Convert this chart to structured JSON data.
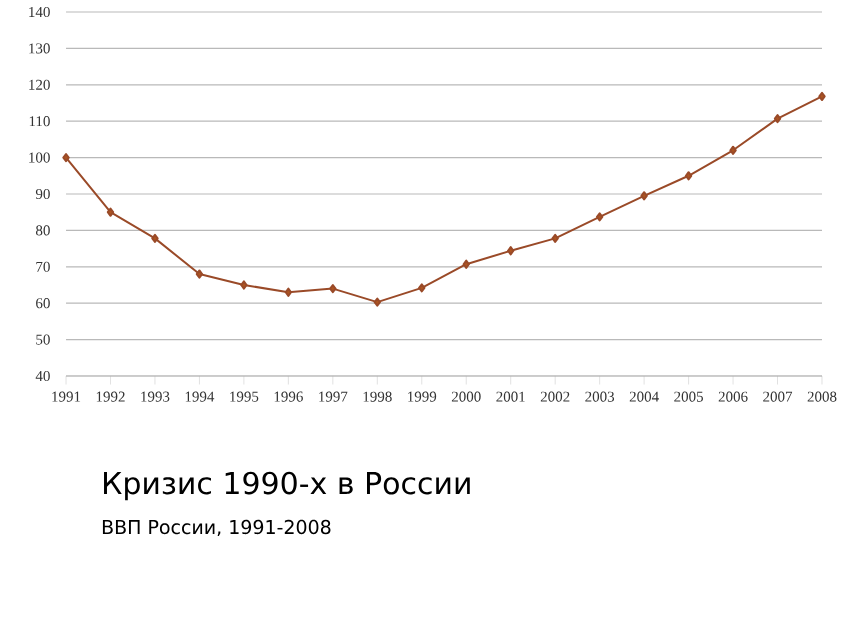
{
  "chart_data": {
    "type": "line",
    "title": "Кризис 1990-х в России",
    "subtitle": "ВВП России, 1991-2008",
    "categories": [
      "1991",
      "1992",
      "1993",
      "1994",
      "1995",
      "1996",
      "1997",
      "1998",
      "1999",
      "2000",
      "2001",
      "2002",
      "2003",
      "2004",
      "2005",
      "2006",
      "2007",
      "2008"
    ],
    "series": [
      {
        "color": "#9a4a28",
        "values": [
          100,
          85,
          77.8,
          68,
          65,
          63,
          64,
          60.3,
          64.2,
          70.7,
          74.4,
          77.8,
          83.7,
          89.5,
          95,
          102,
          110.7,
          116.8
        ]
      }
    ],
    "ylim": [
      40,
      140
    ],
    "yticks": [
      40,
      50,
      60,
      70,
      80,
      90,
      100,
      110,
      120,
      130,
      140
    ],
    "grid": "y",
    "marker": "diamond",
    "line_style": "solid",
    "legend": false
  }
}
